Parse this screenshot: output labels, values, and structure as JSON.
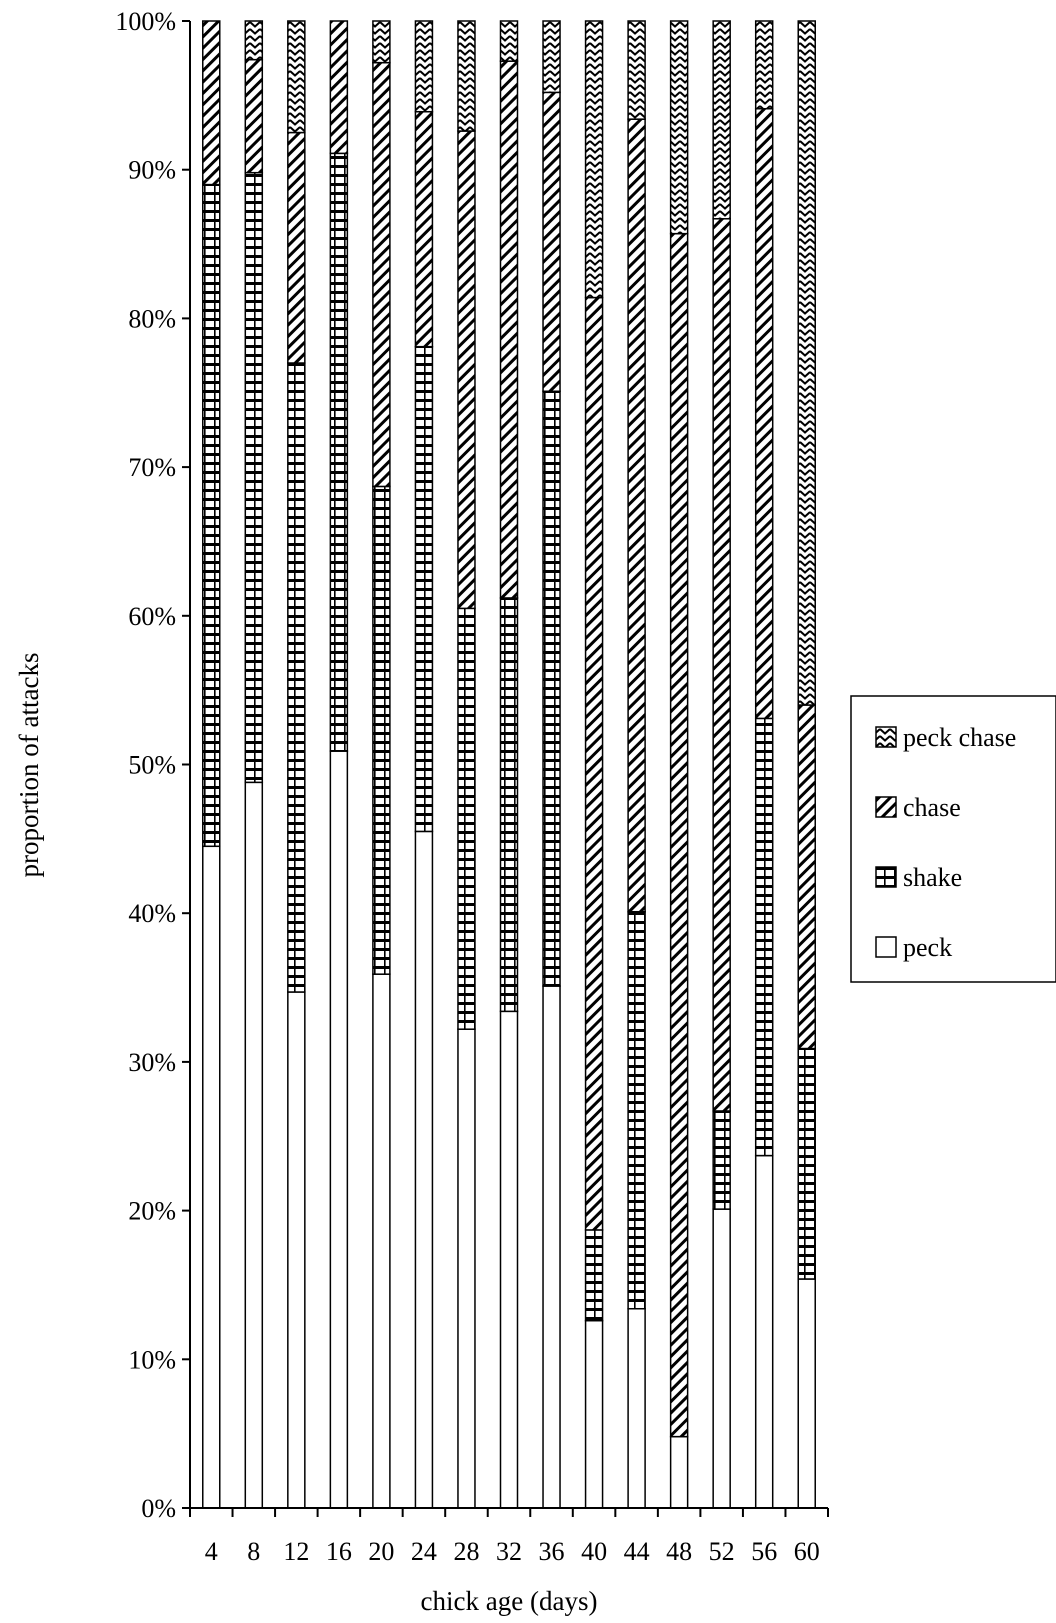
{
  "chart_data": {
    "type": "bar",
    "stacked": true,
    "percent_stacked": true,
    "title": "",
    "xlabel": "chick age (days)",
    "ylabel": "proportion of attacks",
    "ylim": [
      0,
      100
    ],
    "y_ticks": [
      "0%",
      "10%",
      "20%",
      "30%",
      "40%",
      "50%",
      "60%",
      "70%",
      "80%",
      "90%",
      "100%"
    ],
    "grid": false,
    "legend_position": "right",
    "categories": [
      "4",
      "8",
      "12",
      "16",
      "20",
      "24",
      "28",
      "32",
      "36",
      "40",
      "44",
      "48",
      "52",
      "56",
      "60"
    ],
    "series": [
      {
        "name": "peck",
        "pattern": "blank",
        "values": [
          44.5,
          48.8,
          34.7,
          50.9,
          35.9,
          45.5,
          32.2,
          33.4,
          35.1,
          12.6,
          13.4,
          4.8,
          20.1,
          23.7,
          15.4
        ]
      },
      {
        "name": "shake",
        "pattern": "horizontal-stripes",
        "values": [
          44.5,
          41.0,
          42.3,
          40.2,
          32.8,
          32.6,
          28.3,
          27.8,
          40.0,
          6.1,
          26.7,
          0.0,
          6.6,
          29.4,
          15.5
        ]
      },
      {
        "name": "chase",
        "pattern": "diagonal-hatch",
        "values": [
          11.0,
          7.6,
          15.5,
          8.9,
          28.5,
          15.8,
          32.1,
          36.1,
          20.1,
          62.7,
          53.3,
          80.9,
          60.0,
          41.0,
          23.1
        ]
      },
      {
        "name": "peck chase",
        "pattern": "zigzag",
        "values": [
          0.0,
          2.6,
          7.5,
          0.0,
          2.8,
          6.1,
          7.4,
          2.7,
          4.8,
          18.6,
          6.6,
          14.3,
          13.3,
          5.9,
          46.0
        ]
      }
    ],
    "legend_order": [
      "peck chase",
      "chase",
      "shake",
      "peck"
    ]
  }
}
